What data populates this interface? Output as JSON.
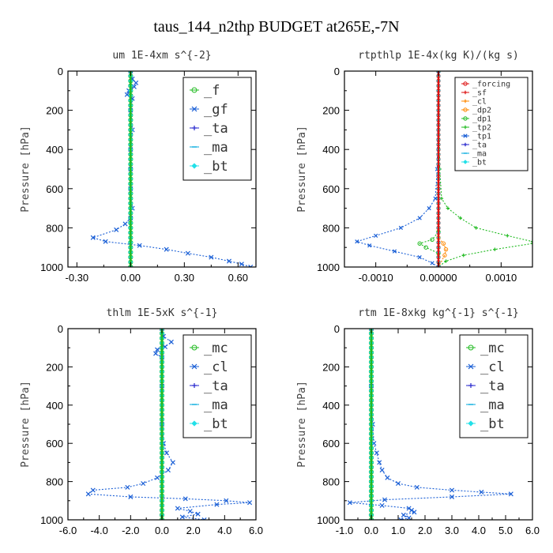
{
  "figure": {
    "title": "taus_144_n2thp  BUDGET at265E,-7N"
  },
  "colors": {
    "green": "#22bb22",
    "blue": "#1a5fd6",
    "darkblue": "#2222cc",
    "cyan": "#00aadd",
    "aqua": "#22e0e8",
    "red": "#dd1111",
    "orange": "#ff8800",
    "yellow": "#e8cc00"
  },
  "chart_data": [
    {
      "type": "line",
      "title": "um  1E-4xm s^{-2}",
      "ylabel": "Pressure [hPa]",
      "xlim": [
        -0.35,
        0.7
      ],
      "ylim": [
        1000,
        0
      ],
      "xticks": [
        -0.3,
        0.0,
        0.3,
        0.6
      ],
      "xtick_labels": [
        "-0.30",
        "0.00",
        "0.30",
        "0.60"
      ],
      "yticks": [
        0,
        200,
        400,
        600,
        800,
        1000
      ],
      "ytick_labels": [
        "0",
        "200",
        "400",
        "600",
        "800",
        "1000"
      ],
      "legend": {
        "position": "top-right",
        "size": "big",
        "entries": [
          "_f",
          "_gf",
          "_ta",
          "_ma",
          "_bt"
        ]
      },
      "series": [
        {
          "name": "_f",
          "color": "green",
          "marker": "circle",
          "points": [
            [
              0.0,
              0
            ],
            [
              0.0,
              1000
            ]
          ]
        },
        {
          "name": "_gf",
          "color": "blue",
          "marker": "x",
          "points": [
            [
              0.0,
              0
            ],
            [
              0.01,
              40
            ],
            [
              0.03,
              60
            ],
            [
              0.02,
              80
            ],
            [
              -0.01,
              100
            ],
            [
              -0.02,
              120
            ],
            [
              0.01,
              140
            ],
            [
              0.0,
              200
            ],
            [
              0.01,
              300
            ],
            [
              0.0,
              400
            ],
            [
              0.0,
              500
            ],
            [
              0.0,
              600
            ],
            [
              0.01,
              700
            ],
            [
              0.0,
              750
            ],
            [
              -0.03,
              780
            ],
            [
              -0.08,
              810
            ],
            [
              -0.21,
              850
            ],
            [
              -0.14,
              870
            ],
            [
              0.05,
              890
            ],
            [
              0.2,
              910
            ],
            [
              0.32,
              930
            ],
            [
              0.45,
              950
            ],
            [
              0.55,
              970
            ],
            [
              0.62,
              985
            ],
            [
              0.67,
              1000
            ]
          ]
        },
        {
          "name": "_ta",
          "color": "darkblue",
          "marker": "plus",
          "points": [
            [
              0.0,
              0
            ],
            [
              0.0,
              1000
            ]
          ]
        },
        {
          "name": "_ma",
          "color": "cyan",
          "marker": "dash",
          "points": [
            [
              0.0,
              0
            ],
            [
              0.0,
              1000
            ]
          ]
        },
        {
          "name": "_bt",
          "color": "aqua",
          "marker": "diamond",
          "points": [
            [
              0.0,
              0
            ],
            [
              0.0,
              1000
            ]
          ]
        }
      ]
    },
    {
      "type": "line",
      "title": "rtpthlp  1E-4x(kg K)/(kg s)",
      "ylabel": "Pressure [hPa]",
      "xlim": [
        -0.0015,
        0.0015
      ],
      "ylim": [
        1000,
        0
      ],
      "xticks": [
        -0.001,
        0.0,
        0.001
      ],
      "xtick_labels": [
        "-0.0010",
        "0.00000",
        "0.0010"
      ],
      "yticks": [
        0,
        200,
        400,
        600,
        800,
        1000
      ],
      "ytick_labels": [
        "0",
        "200",
        "400",
        "600",
        "800",
        "1000"
      ],
      "legend": {
        "position": "top-right",
        "size": "small",
        "entries": [
          "_forcing",
          "_sf",
          "_cl",
          "_dp2",
          "_dp1",
          "_tp2",
          "_tp1",
          "_ta",
          "_ma",
          "_bt"
        ]
      },
      "series": [
        {
          "name": "_forcing",
          "color": "red",
          "marker": "circle",
          "points": [
            [
              0.0,
              0
            ],
            [
              0.0,
              1000
            ]
          ]
        },
        {
          "name": "_sf",
          "color": "red",
          "marker": "plus",
          "points": [
            [
              0.0,
              0
            ],
            [
              0.0,
              1000
            ]
          ]
        },
        {
          "name": "_cl",
          "color": "orange",
          "marker": "plus",
          "points": [
            [
              0.0,
              0
            ],
            [
              0.0,
              1000
            ]
          ]
        },
        {
          "name": "_dp2",
          "color": "orange",
          "marker": "circle",
          "points": [
            [
              0.0,
              0
            ],
            [
              0.0,
              850
            ],
            [
              8e-05,
              880
            ],
            [
              0.00012,
              910
            ],
            [
              0.0001,
              940
            ],
            [
              0.0,
              1000
            ]
          ]
        },
        {
          "name": "_dp1",
          "color": "green",
          "marker": "circle",
          "points": [
            [
              0.0,
              0
            ],
            [
              0.0,
              820
            ],
            [
              -0.0001,
              860
            ],
            [
              -0.0003,
              880
            ],
            [
              -0.0002,
              900
            ],
            [
              0.0,
              930
            ],
            [
              0.0,
              1000
            ]
          ]
        },
        {
          "name": "_tp2",
          "color": "green",
          "marker": "plus",
          "points": [
            [
              0.0,
              0
            ],
            [
              2e-05,
              500
            ],
            [
              5e-05,
              650
            ],
            [
              0.00015,
              700
            ],
            [
              0.00035,
              750
            ],
            [
              0.0006,
              800
            ],
            [
              0.0011,
              840
            ],
            [
              0.0015,
              870
            ],
            [
              0.0015,
              880
            ],
            [
              0.0009,
              910
            ],
            [
              0.0004,
              940
            ],
            [
              0.00012,
              970
            ],
            [
              0.0,
              1000
            ]
          ]
        },
        {
          "name": "_tp1",
          "color": "blue",
          "marker": "x",
          "points": [
            [
              0.0,
              0
            ],
            [
              -2e-05,
              500
            ],
            [
              -5e-05,
              650
            ],
            [
              -0.00015,
              700
            ],
            [
              -0.0003,
              750
            ],
            [
              -0.0006,
              800
            ],
            [
              -0.001,
              840
            ],
            [
              -0.0013,
              870
            ],
            [
              -0.0011,
              890
            ],
            [
              -0.0007,
              920
            ],
            [
              -0.0003,
              950
            ],
            [
              -0.0001,
              980
            ],
            [
              0.0,
              1000
            ]
          ]
        },
        {
          "name": "_ta",
          "color": "darkblue",
          "marker": "plus",
          "points": [
            [
              0.0,
              0
            ],
            [
              0.0,
              1000
            ]
          ]
        },
        {
          "name": "_ma",
          "color": "cyan",
          "marker": "dash",
          "points": [
            [
              0.0,
              0
            ],
            [
              0.0,
              1000
            ]
          ]
        },
        {
          "name": "_bt",
          "color": "aqua",
          "marker": "diamond",
          "points": [
            [
              0.0,
              0
            ],
            [
              0.0,
              1000
            ]
          ]
        }
      ]
    },
    {
      "type": "line",
      "title": "thlm  1E-5xK s^{-1}",
      "ylabel": "Pressure [hPa]",
      "xlim": [
        -6.0,
        6.0
      ],
      "ylim": [
        1000,
        0
      ],
      "xticks": [
        -6,
        -4,
        -2,
        0,
        2,
        4,
        6
      ],
      "xtick_labels": [
        "-6.0",
        "-4.0",
        "-2.0",
        "0.0",
        "2.0",
        "4.0",
        "6.0"
      ],
      "yticks": [
        0,
        200,
        400,
        600,
        800,
        1000
      ],
      "ytick_labels": [
        "0",
        "200",
        "400",
        "600",
        "800",
        "1000"
      ],
      "legend": {
        "position": "top-right",
        "size": "big",
        "entries": [
          "_mc",
          "_cl",
          "_ta",
          "_ma",
          "_bt"
        ]
      },
      "series": [
        {
          "name": "_mc",
          "color": "green",
          "marker": "circle",
          "points": [
            [
              0.0,
              0
            ],
            [
              0.0,
              1000
            ]
          ]
        },
        {
          "name": "_cl",
          "color": "blue",
          "marker": "x",
          "points": [
            [
              0.0,
              0
            ],
            [
              0.1,
              40
            ],
            [
              0.6,
              70
            ],
            [
              0.2,
              95
            ],
            [
              -0.3,
              110
            ],
            [
              -0.4,
              130
            ],
            [
              0.0,
              150
            ],
            [
              0.0,
              300
            ],
            [
              0.0,
              500
            ],
            [
              0.1,
              600
            ],
            [
              0.3,
              650
            ],
            [
              0.7,
              700
            ],
            [
              0.4,
              740
            ],
            [
              -0.3,
              780
            ],
            [
              -1.2,
              810
            ],
            [
              -2.2,
              830
            ],
            [
              -4.4,
              845
            ],
            [
              -4.7,
              865
            ],
            [
              -2.0,
              880
            ],
            [
              1.5,
              890
            ],
            [
              4.1,
              900
            ],
            [
              5.6,
              910
            ],
            [
              3.5,
              920
            ],
            [
              1.0,
              940
            ],
            [
              1.8,
              955
            ],
            [
              2.3,
              970
            ],
            [
              1.3,
              985
            ],
            [
              2.7,
              1000
            ]
          ]
        },
        {
          "name": "_ta",
          "color": "darkblue",
          "marker": "plus",
          "points": [
            [
              0.0,
              0
            ],
            [
              0.0,
              1000
            ]
          ]
        },
        {
          "name": "_ma",
          "color": "cyan",
          "marker": "dash",
          "points": [
            [
              0.0,
              0
            ],
            [
              0.0,
              1000
            ]
          ]
        },
        {
          "name": "_bt",
          "color": "aqua",
          "marker": "diamond",
          "points": [
            [
              0.0,
              0
            ],
            [
              0.0,
              1000
            ]
          ]
        }
      ]
    },
    {
      "type": "line",
      "title": "rtm  1E-8xkg kg^{-1} s^{-1}",
      "ylabel": "Pressure [hPa]",
      "xlim": [
        -1.0,
        6.0
      ],
      "ylim": [
        1000,
        0
      ],
      "xticks": [
        -1,
        0,
        1,
        2,
        3,
        4,
        5,
        6
      ],
      "xtick_labels": [
        "-1.0",
        "0.0",
        "1.0",
        "2.0",
        "3.0",
        "4.0",
        "5.0",
        "6.0"
      ],
      "yticks": [
        0,
        200,
        400,
        600,
        800,
        1000
      ],
      "ytick_labels": [
        "0",
        "200",
        "400",
        "600",
        "800",
        "1000"
      ],
      "legend": {
        "position": "top-right",
        "size": "big",
        "entries": [
          "_mc",
          "_cl",
          "_ta",
          "_ma",
          "_bt"
        ]
      },
      "series": [
        {
          "name": "_mc",
          "color": "green",
          "marker": "circle",
          "points": [
            [
              0.0,
              0
            ],
            [
              0.0,
              1000
            ]
          ]
        },
        {
          "name": "_cl",
          "color": "blue",
          "marker": "x",
          "points": [
            [
              0.0,
              0
            ],
            [
              0.0,
              300
            ],
            [
              0.05,
              500
            ],
            [
              0.1,
              600
            ],
            [
              0.2,
              650
            ],
            [
              0.3,
              700
            ],
            [
              0.4,
              740
            ],
            [
              0.6,
              780
            ],
            [
              1.0,
              810
            ],
            [
              1.7,
              830
            ],
            [
              3.0,
              845
            ],
            [
              4.1,
              855
            ],
            [
              5.2,
              865
            ],
            [
              3.0,
              880
            ],
            [
              0.5,
              895
            ],
            [
              -0.8,
              910
            ],
            [
              0.4,
              925
            ],
            [
              1.4,
              940
            ],
            [
              1.5,
              950
            ],
            [
              1.6,
              960
            ],
            [
              1.2,
              975
            ],
            [
              1.4,
              990
            ],
            [
              1.1,
              1000
            ]
          ]
        },
        {
          "name": "_ta",
          "color": "darkblue",
          "marker": "plus",
          "points": [
            [
              0.0,
              0
            ],
            [
              0.0,
              1000
            ]
          ]
        },
        {
          "name": "_ma",
          "color": "cyan",
          "marker": "dash",
          "points": [
            [
              0.0,
              0
            ],
            [
              0.0,
              1000
            ]
          ]
        },
        {
          "name": "_bt",
          "color": "aqua",
          "marker": "diamond",
          "points": [
            [
              0.0,
              0
            ],
            [
              0.0,
              1000
            ]
          ]
        }
      ]
    }
  ]
}
